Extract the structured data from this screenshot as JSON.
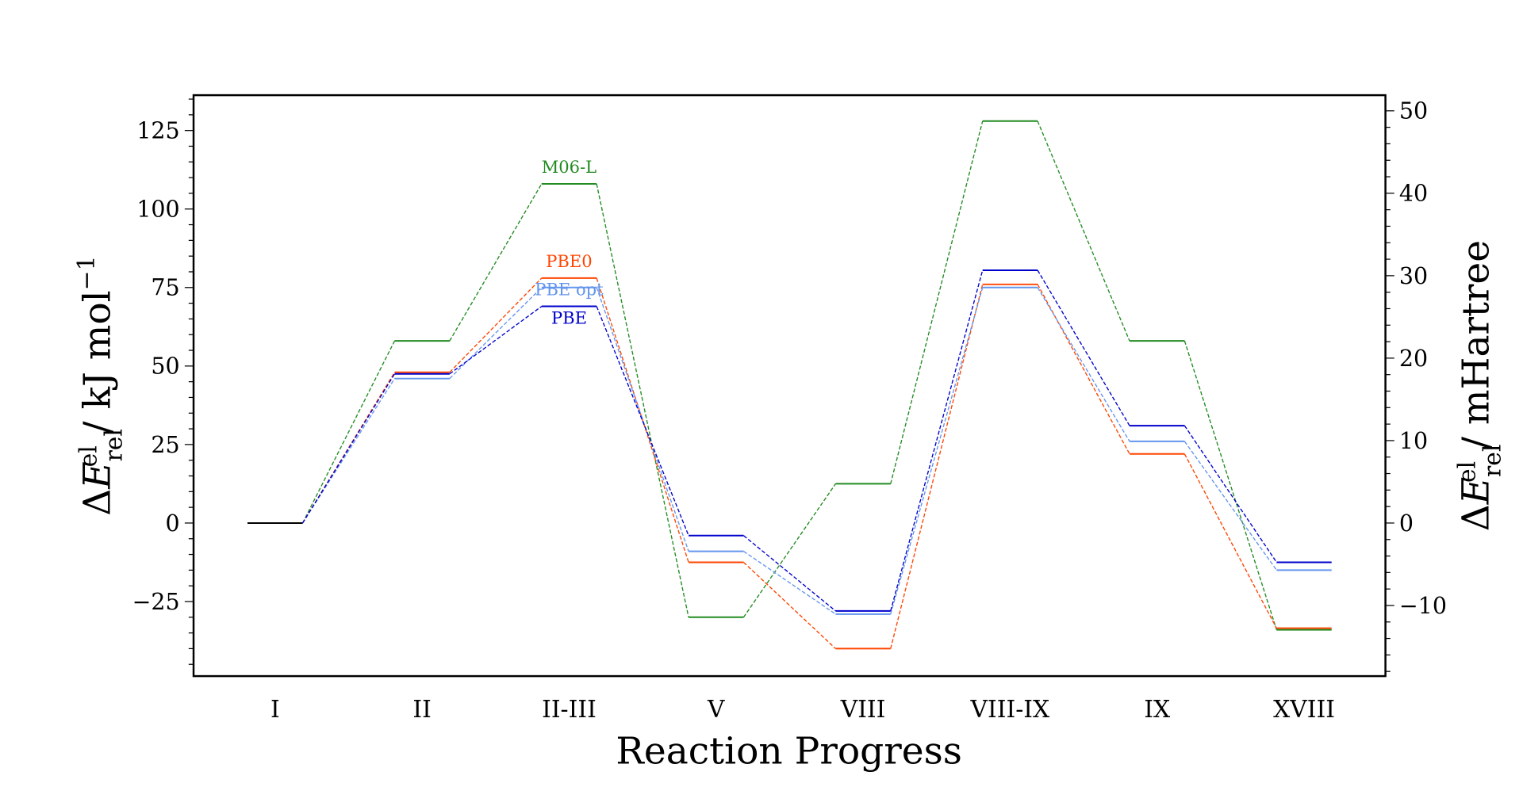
{
  "chart_data": {
    "type": "line",
    "title": "",
    "xlabel": "Reaction Progress",
    "ylabel": "ΔE_rel^el / kJ mol^-1",
    "ylabel_right": "ΔE_rel^el / mHartree",
    "categories": [
      "I",
      "II",
      "II-III",
      "V",
      "VIII",
      "VIII-IX",
      "IX",
      "XVIII"
    ],
    "ylim": [
      -48.75,
      136.25
    ],
    "yticks": [
      -25,
      0,
      25,
      50,
      75,
      100,
      125
    ],
    "ytick_labels": [
      "−25",
      "0",
      "25",
      "50",
      "75",
      "100",
      "125"
    ],
    "yticks_right": [
      -10,
      0,
      10,
      20,
      30,
      40,
      50
    ],
    "ytick_right_labels": [
      "−10",
      "0",
      "10",
      "20",
      "30",
      "40",
      "50"
    ],
    "hartree_to_kjmol": 2.6255,
    "grid": false,
    "style": "energy-level diagram: solid plateaus, dashed connectors",
    "series": [
      {
        "name": "M06-L",
        "color": "#228B22",
        "values": [
          0,
          58,
          108,
          -30,
          12.5,
          128,
          58,
          -34
        ]
      },
      {
        "name": "PBE0",
        "color": "#FF4500",
        "values": [
          0,
          48,
          78,
          -12.5,
          -40,
          76,
          22,
          -33.5
        ]
      },
      {
        "name": "PBE opt",
        "color": "#6495ED",
        "values": [
          0,
          46,
          75,
          -9,
          -29,
          75,
          26,
          -15
        ]
      },
      {
        "name": "PBE",
        "color": "#0000CD",
        "values": [
          0,
          47.5,
          69,
          -4,
          -28,
          80.5,
          31,
          -12.5
        ]
      }
    ],
    "reference_color": "#000000"
  }
}
